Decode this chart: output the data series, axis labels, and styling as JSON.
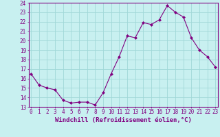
{
  "x": [
    0,
    1,
    2,
    3,
    4,
    5,
    6,
    7,
    8,
    9,
    10,
    11,
    12,
    13,
    14,
    15,
    16,
    17,
    18,
    19,
    20,
    21,
    22,
    23
  ],
  "y": [
    16.5,
    15.3,
    15.0,
    14.8,
    13.7,
    13.4,
    13.5,
    13.5,
    13.2,
    14.5,
    16.5,
    18.3,
    20.5,
    20.3,
    21.9,
    21.7,
    22.2,
    23.7,
    23.0,
    22.5,
    20.3,
    19.0,
    18.3,
    17.2
  ],
  "xlim": [
    -0.3,
    23.3
  ],
  "ylim": [
    13,
    24
  ],
  "yticks": [
    13,
    14,
    15,
    16,
    17,
    18,
    19,
    20,
    21,
    22,
    23,
    24
  ],
  "xticks": [
    0,
    1,
    2,
    3,
    4,
    5,
    6,
    7,
    8,
    9,
    10,
    11,
    12,
    13,
    14,
    15,
    16,
    17,
    18,
    19,
    20,
    21,
    22,
    23
  ],
  "xlabel": "Windchill (Refroidissement éolien,°C)",
  "line_color": "#800080",
  "marker": "D",
  "marker_size": 2,
  "bg_color": "#c8f0f0",
  "grid_color": "#a0d8d8",
  "tick_color": "#800080",
  "label_color": "#800080",
  "tick_fontsize": 5.5,
  "xlabel_fontsize": 6.5
}
